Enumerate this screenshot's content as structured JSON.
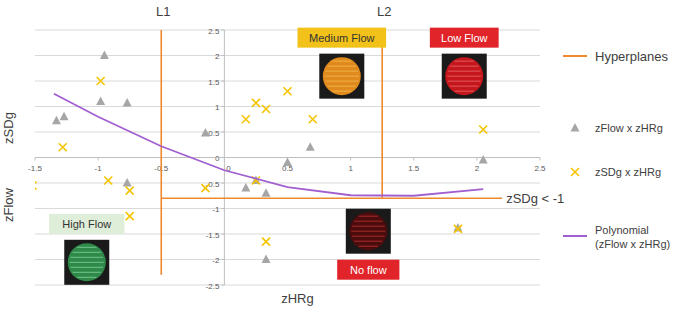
{
  "chart_data": {
    "type": "scatter",
    "x_label": "zHRg",
    "y_label": [
      "zSDg",
      "zFlow"
    ],
    "xlim": [
      -1.5,
      2.5
    ],
    "ylim": [
      -2.5,
      2.5
    ],
    "xticks": [
      -1.5,
      -1,
      -0.5,
      0,
      0.5,
      1,
      1.5,
      2,
      2.5
    ],
    "yticks": [
      -2.5,
      -2,
      -1.5,
      -1,
      -0.5,
      0,
      0.5,
      1,
      1.5,
      2,
      2.5
    ],
    "grid": true,
    "series": [
      {
        "name": "zFlow x zHRg",
        "color": "#a6a6a6",
        "marker": "triangle",
        "x": [
          -0.95,
          -1.33,
          -1.27,
          -0.98,
          -0.77,
          -0.77,
          -0.15,
          0.17,
          0.33,
          0.25,
          0.5,
          0.68,
          0.33,
          1.85,
          2.05
        ],
        "values": [
          2.0,
          0.72,
          0.8,
          1.1,
          1.07,
          -0.5,
          0.48,
          -0.6,
          -0.7,
          -0.45,
          -0.1,
          0.2,
          -2.0,
          -1.38,
          -0.05
        ]
      },
      {
        "name": "zSDg x zHRg",
        "color": "#f5c400",
        "marker": "x",
        "x": [
          -0.98,
          -1.28,
          -1.52,
          -0.92,
          -0.75,
          -0.75,
          -0.15,
          0.17,
          0.25,
          0.33,
          0.5,
          0.7,
          0.25,
          0.33,
          1.85,
          2.05
        ],
        "values": [
          1.5,
          0.2,
          -0.55,
          -0.45,
          -0.65,
          -1.15,
          -0.6,
          0.75,
          1.07,
          0.95,
          1.3,
          0.75,
          -0.45,
          -1.65,
          -1.4,
          0.55
        ]
      },
      {
        "name": "Polynomial (zFlow x zHRg)",
        "type": "line",
        "color": "#a15fd0",
        "line_style": "solid",
        "x": [
          -1.35,
          -1,
          -0.5,
          0,
          0.5,
          1,
          1.5,
          2.05
        ],
        "values": [
          1.25,
          0.8,
          0.22,
          -0.25,
          -0.58,
          -0.74,
          -0.75,
          -0.62
        ]
      }
    ],
    "hyperplanes": {
      "title": "Hyperplanes",
      "color": "#f0892e",
      "lines": [
        {
          "label": "L1",
          "x": -0.5,
          "y": [
            -2.3,
            2.5
          ]
        },
        {
          "label": "L2",
          "x": 1.25,
          "y": [
            -0.8,
            2.5
          ]
        },
        {
          "label": "zSDg < -1",
          "y": -0.8,
          "x": [
            -0.5,
            2.2
          ]
        }
      ]
    },
    "regions": [
      {
        "label": "Medium Flow",
        "color": "#f2c21a",
        "x": 0.93,
        "y": 2.35
      },
      {
        "label": "Low Flow",
        "color": "#e0242a",
        "x": 1.9,
        "y": 2.35
      },
      {
        "label": "No flow",
        "color": "#e0242a",
        "x": 1.14,
        "y": -2.2
      },
      {
        "label": "High Flow",
        "color": "#dfeed8",
        "x": -1.09,
        "y": -1.3
      }
    ]
  }
}
